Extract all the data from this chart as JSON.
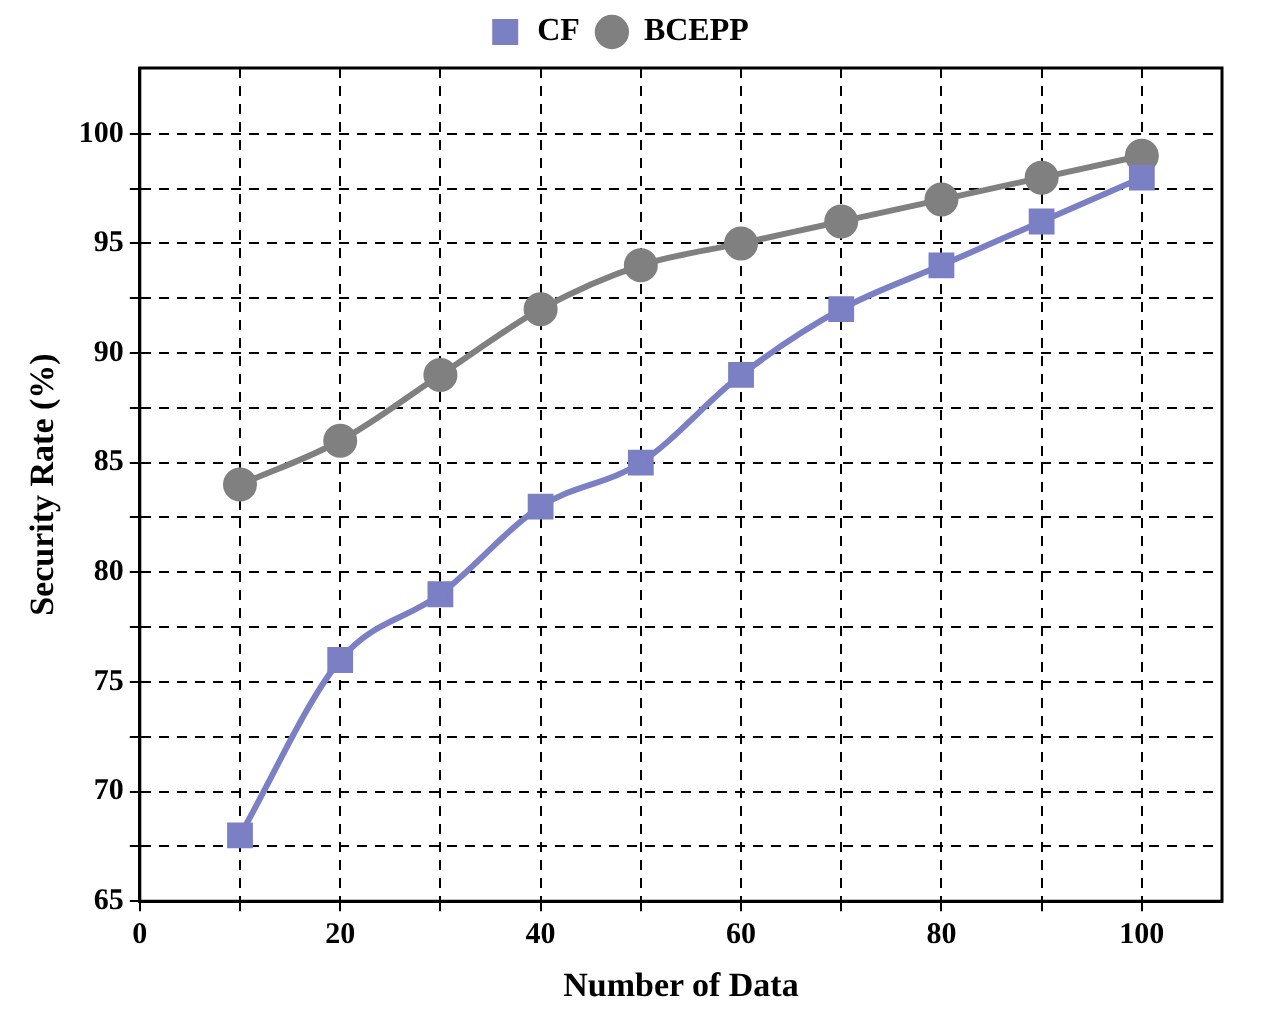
{
  "chart_data": {
    "type": "line",
    "xlabel": "Number of Data",
    "ylabel": "Security Rate (%)",
    "x": [
      10,
      20,
      30,
      40,
      50,
      60,
      70,
      80,
      90,
      100
    ],
    "series": [
      {
        "name": "CF",
        "color": "#7b7fc4",
        "marker": "square",
        "values": [
          68,
          76,
          79,
          83,
          85,
          89,
          92,
          94,
          96,
          98
        ]
      },
      {
        "name": "BCEPP",
        "color": "#808080",
        "marker": "circle",
        "values": [
          84,
          86,
          89,
          92,
          94,
          95,
          96,
          97,
          98,
          99
        ]
      }
    ],
    "xlim": [
      0,
      108
    ],
    "xticks": [
      0,
      {
        "value": 10,
        "label": null
      },
      20,
      {
        "value": 30,
        "label": null
      },
      40,
      {
        "value": 50,
        "label": null
      },
      60,
      {
        "value": 70,
        "label": null
      },
      80,
      {
        "value": 90,
        "label": null
      },
      100
    ],
    "ylim": [
      65,
      103
    ],
    "yticks": [
      65,
      {
        "value": 67.5,
        "label": null
      },
      70,
      {
        "value": 72.5,
        "label": null
      },
      75,
      {
        "value": 77.5,
        "label": null
      },
      80,
      {
        "value": 82.5,
        "label": null
      },
      85,
      {
        "value": 87.5,
        "label": null
      },
      90,
      {
        "value": 92.5,
        "label": null
      },
      95,
      {
        "value": 97.5,
        "label": null
      },
      100
    ],
    "grid": true,
    "legend": "top",
    "line_style": "solid"
  }
}
